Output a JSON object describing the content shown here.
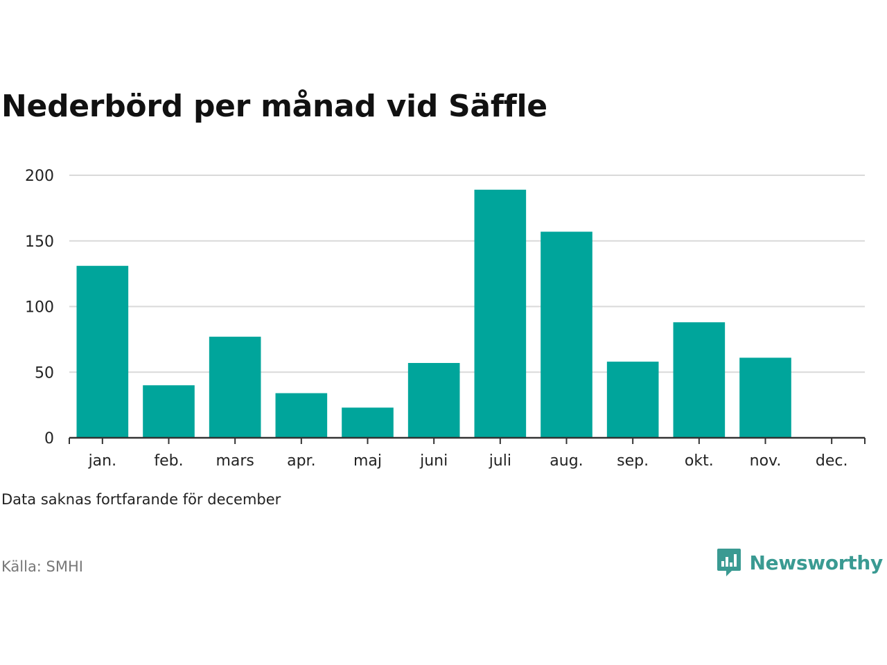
{
  "title": "Nederbörd per månad vid Säffle",
  "note": "Data saknas fortfarande för december",
  "source": "Källa: SMHI",
  "brand": {
    "name": "Newsworthy",
    "icon": "newsworthy-logo-icon",
    "color": "#3a9a92"
  },
  "colors": {
    "bar": "#00a59b",
    "grid": "#d9d9d9",
    "axis": "#333333"
  },
  "chart_data": {
    "type": "bar",
    "categories": [
      "jan.",
      "feb.",
      "mars",
      "apr.",
      "maj",
      "juni",
      "juli",
      "aug.",
      "sep.",
      "okt.",
      "nov.",
      "dec."
    ],
    "values": [
      131,
      40,
      77,
      34,
      23,
      57,
      189,
      157,
      58,
      88,
      61,
      null
    ],
    "ylim": [
      0,
      200
    ],
    "yticks": [
      0,
      50,
      100,
      150,
      200
    ],
    "grid": true,
    "legend": "none"
  }
}
